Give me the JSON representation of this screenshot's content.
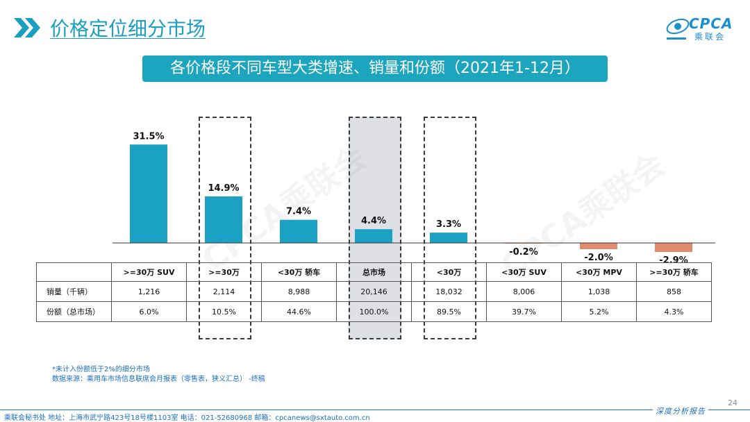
{
  "header": {
    "title": "价格定位细分市场",
    "logo_text": "CPCA",
    "logo_sub": "乘联会"
  },
  "banner": "各价格段不同车型大类增速、销量和份额（2021年1-12月）",
  "watermark": "CPCA乘联会",
  "chart_data": {
    "type": "bar",
    "categories": [
      ">=30万 SUV",
      ">=30万",
      "<30万 轿车",
      "总市场",
      "<30万",
      "<30万 SUV",
      "<30万 MPV",
      ">=30万 轿车"
    ],
    "values": [
      31.5,
      14.9,
      7.4,
      4.4,
      3.3,
      -0.2,
      -2.0,
      -2.9
    ],
    "value_labels": [
      "31.5%",
      "14.9%",
      "7.4%",
      "4.4%",
      "3.3%",
      "-0.2%",
      "-2.0%",
      "-2.9%"
    ],
    "ylim": [
      -3,
      31.5
    ],
    "positive_color": "#1ba1c4",
    "negative_color": "#e08a6e",
    "title": "",
    "xlabel": "",
    "ylabel": "",
    "grid": false,
    "highlighted_columns": [
      1,
      3,
      4
    ],
    "shaded_columns": [
      3
    ]
  },
  "table": {
    "rows": [
      {
        "label": "销量（千辆）",
        "values": [
          "1,216",
          "2,114",
          "8,988",
          "20,146",
          "18,032",
          "8,006",
          "1,038",
          "858"
        ]
      },
      {
        "label": "份额（总市场）",
        "values": [
          "6.0%",
          "10.5%",
          "44.6%",
          "100.0%",
          "89.5%",
          "39.7%",
          "5.2%",
          "4.3%"
        ]
      }
    ]
  },
  "notes": {
    "line1": "*未计入份额低于2%的细分市场",
    "line2": "数据来源：乘用车市场信息联席会月报表（零售表，狭义汇总）  -终稿"
  },
  "footer": {
    "text": "乘联会秘书处   地址：上海市武宁路423号18号楼1103室   电话：021-52680968   邮箱：cpcanews@sxtauto.com.cn",
    "report": "深度分析报告",
    "page_number": "24"
  }
}
